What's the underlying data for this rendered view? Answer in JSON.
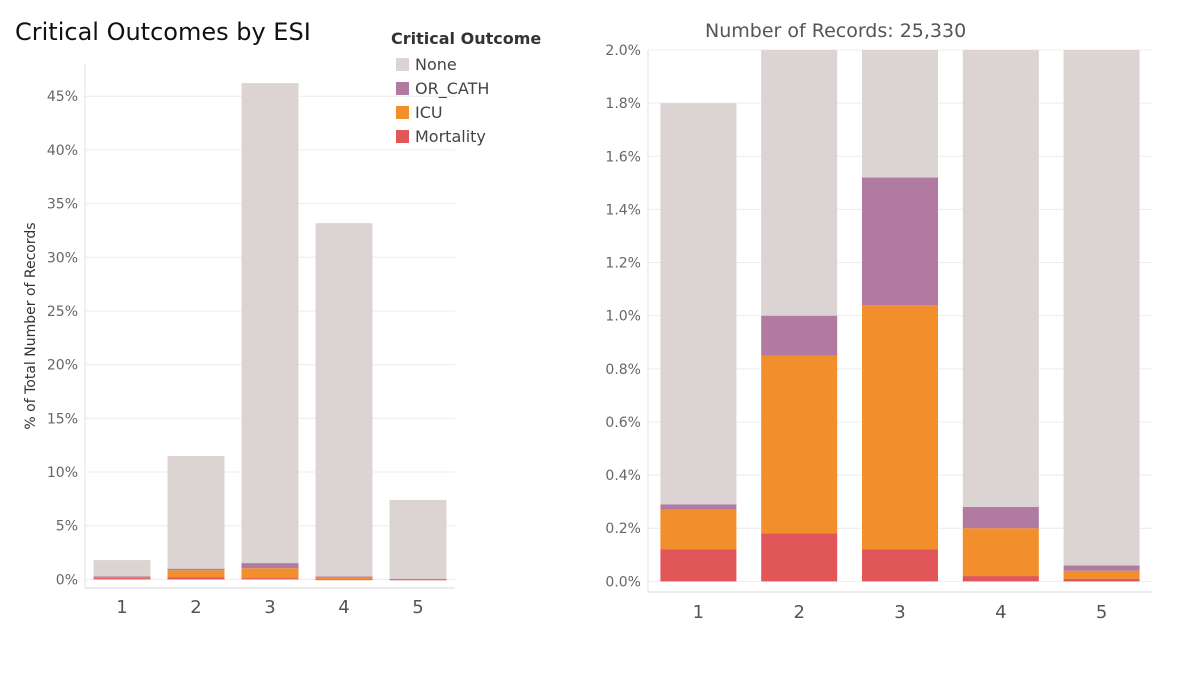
{
  "title": "Critical Outcomes by ESI",
  "legend": {
    "title": "Critical Outcome",
    "items": [
      {
        "label": "None",
        "color": "#dbd4d2"
      },
      {
        "label": "OR_CATH",
        "color": "#b07aa1"
      },
      {
        "label": "ICU",
        "color": "#f28e2b"
      },
      {
        "label": "Mortality",
        "color": "#e15759"
      }
    ]
  },
  "right_title": "Number of Records: 25,330",
  "chart_data": [
    {
      "type": "bar",
      "stacked": true,
      "categories": [
        "1",
        "2",
        "3",
        "4",
        "5"
      ],
      "ylabel": "% of Total Number of Records",
      "ylim": [
        -0.8,
        48
      ],
      "yticks": [
        0,
        5,
        10,
        15,
        20,
        25,
        30,
        35,
        40,
        45
      ],
      "ytick_labels": [
        "0%",
        "5%",
        "10%",
        "15%",
        "20%",
        "25%",
        "30%",
        "35%",
        "40%",
        "45%"
      ],
      "series": [
        {
          "name": "Mortality",
          "color": "#e15759",
          "values": [
            0.12,
            0.18,
            0.12,
            0.02,
            0.01
          ]
        },
        {
          "name": "ICU",
          "color": "#f28e2b",
          "values": [
            0.15,
            0.67,
            0.92,
            0.18,
            0.03
          ]
        },
        {
          "name": "OR_CATH",
          "color": "#b07aa1",
          "values": [
            0.02,
            0.15,
            0.48,
            0.08,
            0.02
          ]
        },
        {
          "name": "None",
          "color": "#dbd4d2",
          "values": [
            1.51,
            10.5,
            44.7,
            32.9,
            7.34
          ]
        }
      ]
    },
    {
      "type": "bar",
      "stacked": true,
      "categories": [
        "1",
        "2",
        "3",
        "4",
        "5"
      ],
      "ylim": [
        -0.04,
        2.0
      ],
      "yticks": [
        0,
        0.2,
        0.4,
        0.6,
        0.8,
        1.0,
        1.2,
        1.4,
        1.6,
        1.8,
        2.0
      ],
      "ytick_labels": [
        "0.0%",
        "0.2%",
        "0.4%",
        "0.6%",
        "0.8%",
        "1.0%",
        "1.2%",
        "1.4%",
        "1.6%",
        "1.8%",
        "2.0%"
      ],
      "series": [
        {
          "name": "Mortality",
          "color": "#e15759",
          "values": [
            0.12,
            0.18,
            0.12,
            0.02,
            0.01
          ]
        },
        {
          "name": "ICU",
          "color": "#f28e2b",
          "values": [
            0.15,
            0.67,
            0.92,
            0.18,
            0.03
          ]
        },
        {
          "name": "OR_CATH",
          "color": "#b07aa1",
          "values": [
            0.02,
            0.15,
            0.48,
            0.08,
            0.02
          ]
        },
        {
          "name": "None",
          "color": "#dbd4d2",
          "values": [
            1.51,
            1.0,
            0.48,
            1.72,
            1.94
          ]
        }
      ]
    }
  ]
}
